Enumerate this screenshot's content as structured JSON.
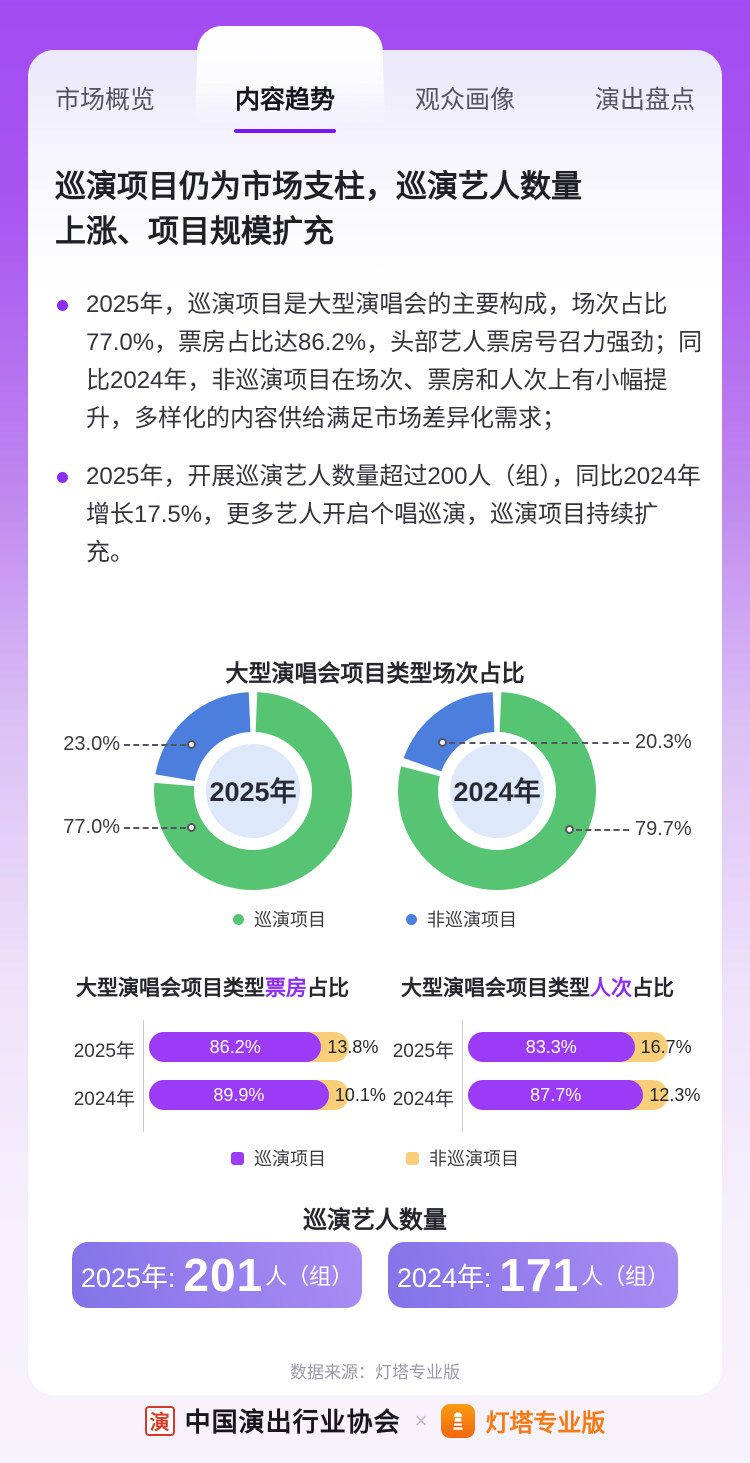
{
  "tabs": [
    {
      "label": "市场概览",
      "active": false
    },
    {
      "label": "内容趋势",
      "active": true
    },
    {
      "label": "观众画像",
      "active": false
    },
    {
      "label": "演出盘点",
      "active": false
    }
  ],
  "headline": {
    "line1": "巡演项目仍为市场支柱，巡演艺人数量",
    "line2": "上涨、项目规模扩充"
  },
  "bullets": [
    "2025年，巡演项目是大型演唱会的主要构成，场次占比77.0%，票房占比达86.2%，头部艺人票房号召力强劲；同比2024年，非巡演项目在场次、票房和人次上有小幅提升，多样化的内容供给满足市场差异化需求；",
    "2025年，开展巡演艺人数量超过200人（组），同比2024年增长17.5%，更多艺人开启个唱巡演，巡演项目持续扩充。"
  ],
  "chart_data": [
    {
      "type": "pie",
      "title": "大型演唱会项目类型场次占比",
      "legend": [
        "巡演项目",
        "非巡演项目"
      ],
      "legend_position": "bottom",
      "donuts": [
        {
          "center_label": "2025年",
          "label_side": "left",
          "slices": [
            {
              "name": "巡演项目",
              "value": 77.0,
              "label": "77.0%",
              "color": "#57C474"
            },
            {
              "name": "非巡演项目",
              "value": 23.0,
              "label": "23.0%",
              "color": "#4C7EDD"
            }
          ]
        },
        {
          "center_label": "2024年",
          "label_side": "right",
          "slices": [
            {
              "name": "巡演项目",
              "value": 79.7,
              "label": "79.7%",
              "color": "#57C474"
            },
            {
              "name": "非巡演项目",
              "value": 20.3,
              "label": "20.3%",
              "color": "#4C7EDD"
            }
          ]
        }
      ]
    },
    {
      "type": "bar",
      "orientation": "horizontal-stacked",
      "title_prefix": "大型演唱会项目类型",
      "title_highlight": "票房",
      "title_suffix": "占比",
      "categories": [
        "2025年",
        "2024年"
      ],
      "xlim": [
        0,
        100
      ],
      "series": [
        {
          "name": "巡演项目",
          "values": [
            86.2,
            89.9
          ],
          "value_labels": [
            "86.2%",
            "89.9%"
          ],
          "color": "#9B3BF5"
        },
        {
          "name": "非巡演项目",
          "values": [
            13.8,
            10.1
          ],
          "value_labels": [
            "13.8%",
            "10.1%"
          ],
          "color": "#F8CE79"
        }
      ]
    },
    {
      "type": "bar",
      "orientation": "horizontal-stacked",
      "title_prefix": "大型演唱会项目类型",
      "title_highlight": "人次",
      "title_suffix": "占比",
      "categories": [
        "2025年",
        "2024年"
      ],
      "xlim": [
        0,
        100
      ],
      "series": [
        {
          "name": "巡演项目",
          "values": [
            83.3,
            87.7
          ],
          "value_labels": [
            "83.3%",
            "87.7%"
          ],
          "color": "#9B3BF5"
        },
        {
          "name": "非巡演项目",
          "values": [
            16.7,
            12.3
          ],
          "value_labels": [
            "16.7%",
            "12.3%"
          ],
          "color": "#F8CE79"
        }
      ]
    }
  ],
  "artist_count": {
    "title": "巡演艺人数量",
    "items": [
      {
        "year_label": "2025年:",
        "value": "201",
        "unit": "人（组）"
      },
      {
        "year_label": "2024年:",
        "value": "171",
        "unit": "人（组）"
      }
    ]
  },
  "source": "数据来源：灯塔专业版",
  "footer": {
    "seal_char": "演",
    "association": "中国演出行业协会",
    "separator": "×",
    "brand": "灯塔专业版"
  },
  "colors": {
    "accent": "#7B16F2",
    "highlight": "#8B2DF5",
    "bullet": "#8B2DF5",
    "green": "#57C474",
    "blue": "#4C7EDD",
    "bar_purple": "#9B3BF5",
    "bar_yellow": "#F8CE79",
    "donut_center": "#DEE8FB",
    "pill_from": "#8273E8",
    "pill_to": "#AB8DF3",
    "brand_orange": "#F57A14"
  }
}
